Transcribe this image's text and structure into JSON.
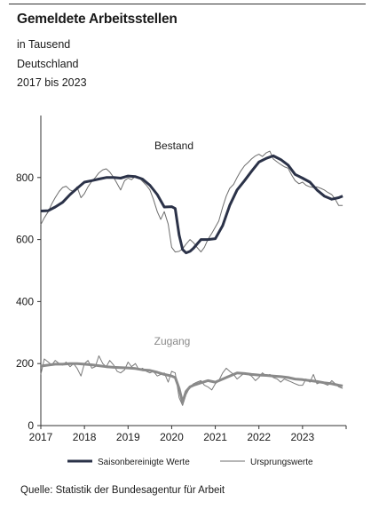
{
  "header": {
    "title": "Gemeldete Arbeitsstellen",
    "unit": "in Tausend",
    "region": "Deutschland",
    "period": "2017 bis 2023"
  },
  "source": "Quelle: Statistik der Bundesagentur für Arbeit",
  "colors": {
    "seasonal": "#2b3248",
    "original": "#6d6d6d",
    "zugang_seasonal": "#8a8a8a",
    "zugang_original": "#7a7a7a"
  },
  "chart_data": {
    "type": "line",
    "title": "Gemeldete Arbeitsstellen",
    "ylim": [
      0,
      1000
    ],
    "yticks": [
      0,
      200,
      400,
      600,
      800
    ],
    "xlim": [
      2017,
      2024
    ],
    "xticks": [
      "2017",
      "2018",
      "2019",
      "2020",
      "2021",
      "2022",
      "2023"
    ],
    "grid": false,
    "legend": "bottom",
    "annotations": [
      "Bestand",
      "Zugang"
    ],
    "series": [
      {
        "name": "Saisonbereinigte Werte",
        "group": "Bestand",
        "x": [
          2017.0,
          2017.17,
          2017.33,
          2017.5,
          2017.67,
          2017.83,
          2018.0,
          2018.17,
          2018.33,
          2018.5,
          2018.67,
          2018.83,
          2019.0,
          2019.17,
          2019.33,
          2019.5,
          2019.67,
          2019.83,
          2020.0,
          2020.08,
          2020.17,
          2020.25,
          2020.33,
          2020.42,
          2020.5,
          2020.67,
          2020.83,
          2021.0,
          2021.17,
          2021.33,
          2021.5,
          2021.67,
          2021.83,
          2022.0,
          2022.17,
          2022.33,
          2022.5,
          2022.67,
          2022.83,
          2023.0,
          2023.17,
          2023.33,
          2023.5,
          2023.67,
          2023.83,
          2023.92
        ],
        "values": [
          692,
          693,
          705,
          720,
          745,
          765,
          785,
          790,
          795,
          800,
          800,
          798,
          805,
          803,
          795,
          775,
          745,
          705,
          706,
          700,
          615,
          568,
          557,
          562,
          572,
          600,
          600,
          603,
          645,
          710,
          760,
          790,
          820,
          850,
          862,
          870,
          858,
          840,
          810,
          798,
          785,
          760,
          740,
          730,
          735,
          740
        ]
      },
      {
        "name": "Ursprungswerte",
        "group": "Bestand",
        "x": [
          2017.0,
          2017.08,
          2017.17,
          2017.25,
          2017.33,
          2017.42,
          2017.5,
          2017.58,
          2017.67,
          2017.75,
          2017.83,
          2017.92,
          2018.0,
          2018.08,
          2018.17,
          2018.25,
          2018.33,
          2018.42,
          2018.5,
          2018.58,
          2018.67,
          2018.75,
          2018.83,
          2018.92,
          2019.0,
          2019.08,
          2019.17,
          2019.25,
          2019.33,
          2019.42,
          2019.5,
          2019.58,
          2019.67,
          2019.75,
          2019.83,
          2019.92,
          2020.0,
          2020.08,
          2020.17,
          2020.25,
          2020.33,
          2020.42,
          2020.5,
          2020.58,
          2020.67,
          2020.75,
          2020.83,
          2020.92,
          2021.0,
          2021.08,
          2021.17,
          2021.25,
          2021.33,
          2021.42,
          2021.5,
          2021.58,
          2021.67,
          2021.75,
          2021.83,
          2021.92,
          2022.0,
          2022.08,
          2022.17,
          2022.25,
          2022.33,
          2022.42,
          2022.5,
          2022.58,
          2022.67,
          2022.75,
          2022.83,
          2022.92,
          2023.0,
          2023.08,
          2023.17,
          2023.25,
          2023.33,
          2023.42,
          2023.5,
          2023.58,
          2023.67,
          2023.75,
          2023.83,
          2023.92
        ],
        "values": [
          648,
          670,
          690,
          715,
          735,
          755,
          768,
          772,
          760,
          755,
          770,
          735,
          748,
          770,
          788,
          800,
          815,
          825,
          828,
          818,
          800,
          780,
          760,
          790,
          798,
          793,
          805,
          800,
          788,
          775,
          760,
          730,
          690,
          665,
          690,
          650,
          575,
          560,
          562,
          570,
          585,
          600,
          590,
          575,
          560,
          575,
          600,
          620,
          640,
          660,
          705,
          740,
          765,
          778,
          800,
          820,
          838,
          848,
          860,
          870,
          875,
          868,
          880,
          885,
          860,
          850,
          842,
          835,
          830,
          808,
          790,
          780,
          785,
          775,
          770,
          768,
          770,
          765,
          760,
          752,
          745,
          730,
          710,
          710
        ]
      },
      {
        "name": "Saisonbereinigte Werte",
        "group": "Zugang",
        "x": [
          2017.0,
          2017.17,
          2017.33,
          2017.5,
          2017.67,
          2017.83,
          2018.0,
          2018.17,
          2018.33,
          2018.5,
          2018.67,
          2018.83,
          2019.0,
          2019.17,
          2019.33,
          2019.5,
          2019.67,
          2019.83,
          2020.0,
          2020.08,
          2020.17,
          2020.25,
          2020.33,
          2020.42,
          2020.5,
          2020.67,
          2020.83,
          2021.0,
          2021.17,
          2021.33,
          2021.5,
          2021.67,
          2021.83,
          2022.0,
          2022.17,
          2022.33,
          2022.5,
          2022.67,
          2022.83,
          2023.0,
          2023.17,
          2023.33,
          2023.5,
          2023.67,
          2023.83,
          2023.92
        ],
        "values": [
          192,
          195,
          198,
          198,
          200,
          200,
          198,
          196,
          193,
          190,
          188,
          187,
          186,
          184,
          180,
          178,
          172,
          165,
          160,
          155,
          120,
          75,
          110,
          125,
          130,
          138,
          145,
          140,
          150,
          160,
          170,
          168,
          165,
          163,
          162,
          160,
          158,
          155,
          150,
          148,
          145,
          142,
          138,
          135,
          130,
          128
        ]
      },
      {
        "name": "Ursprungswerte",
        "group": "Zugang",
        "x": [
          2017.0,
          2017.08,
          2017.17,
          2017.25,
          2017.33,
          2017.42,
          2017.5,
          2017.58,
          2017.67,
          2017.75,
          2017.83,
          2017.92,
          2018.0,
          2018.08,
          2018.17,
          2018.25,
          2018.33,
          2018.42,
          2018.5,
          2018.58,
          2018.67,
          2018.75,
          2018.83,
          2018.92,
          2019.0,
          2019.08,
          2019.17,
          2019.25,
          2019.33,
          2019.42,
          2019.5,
          2019.58,
          2019.67,
          2019.75,
          2019.83,
          2019.92,
          2020.0,
          2020.08,
          2020.17,
          2020.25,
          2020.33,
          2020.42,
          2020.5,
          2020.58,
          2020.67,
          2020.75,
          2020.83,
          2020.92,
          2021.0,
          2021.08,
          2021.17,
          2021.25,
          2021.33,
          2021.42,
          2021.5,
          2021.58,
          2021.67,
          2021.75,
          2021.83,
          2021.92,
          2022.0,
          2022.08,
          2022.17,
          2022.25,
          2022.33,
          2022.42,
          2022.5,
          2022.58,
          2022.67,
          2022.75,
          2022.83,
          2022.92,
          2023.0,
          2023.08,
          2023.17,
          2023.25,
          2023.33,
          2023.42,
          2023.5,
          2023.58,
          2023.67,
          2023.75,
          2023.83,
          2023.92
        ],
        "values": [
          165,
          215,
          205,
          195,
          210,
          200,
          195,
          205,
          190,
          200,
          185,
          160,
          200,
          210,
          185,
          190,
          225,
          200,
          190,
          210,
          195,
          175,
          170,
          180,
          205,
          190,
          200,
          180,
          185,
          175,
          170,
          175,
          160,
          165,
          170,
          140,
          175,
          170,
          90,
          65,
          100,
          125,
          135,
          140,
          145,
          130,
          125,
          115,
          135,
          145,
          170,
          185,
          175,
          165,
          150,
          160,
          170,
          165,
          160,
          145,
          155,
          170,
          160,
          165,
          155,
          150,
          140,
          150,
          145,
          140,
          135,
          130,
          130,
          150,
          140,
          165,
          135,
          140,
          135,
          130,
          145,
          135,
          125,
          120
        ]
      }
    ]
  },
  "legend": {
    "seasonal_label": "Saisonbereinigte Werte",
    "original_label": "Ursprungswerte"
  }
}
